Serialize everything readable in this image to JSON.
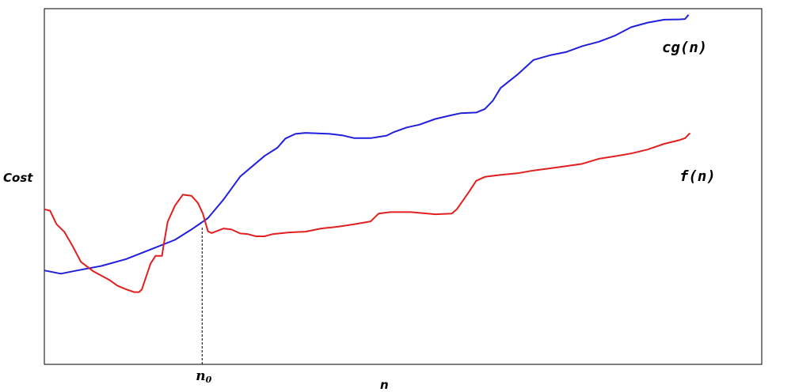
{
  "chart_data": {
    "type": "line",
    "title": "",
    "xlabel": "n",
    "ylabel": "Cost",
    "grid": false,
    "legend": "none",
    "xlim": [
      0,
      100
    ],
    "ylim": [
      0,
      100
    ],
    "marker": {
      "label": "n",
      "subscript": "0",
      "x": 22
    },
    "series": [
      {
        "name": "cg(n)",
        "color": "#1f1fdc",
        "points": [
          [
            0,
            26.4
          ],
          [
            2.3,
            25.5
          ],
          [
            4.6,
            26.4
          ],
          [
            8,
            27.7
          ],
          [
            11.4,
            29.6
          ],
          [
            14.8,
            32.3
          ],
          [
            18.2,
            35
          ],
          [
            20.5,
            37.9
          ],
          [
            22.8,
            41.1
          ],
          [
            25,
            46.4
          ],
          [
            27.3,
            52.8
          ],
          [
            30.7,
            58.6
          ],
          [
            32.5,
            60.9
          ],
          [
            33.6,
            63.5
          ],
          [
            35,
            64.8
          ],
          [
            36.4,
            65.1
          ],
          [
            39.8,
            64.8
          ],
          [
            41.5,
            64.4
          ],
          [
            43.2,
            63.6
          ],
          [
            45.5,
            63.6
          ],
          [
            47.7,
            64.3
          ],
          [
            48.6,
            65.2
          ],
          [
            50.5,
            66.6
          ],
          [
            52.3,
            67.4
          ],
          [
            54.5,
            69
          ],
          [
            56.8,
            70.1
          ],
          [
            58,
            70.6
          ],
          [
            60.2,
            70.8
          ],
          [
            61.4,
            71.8
          ],
          [
            62.5,
            74.1
          ],
          [
            63.6,
            77.7
          ],
          [
            65.9,
            81.4
          ],
          [
            68.2,
            85.6
          ],
          [
            70.5,
            86.9
          ],
          [
            72.7,
            87.8
          ],
          [
            75,
            89.5
          ],
          [
            77.3,
            90.7
          ],
          [
            79.5,
            92.4
          ],
          [
            81.8,
            94.8
          ],
          [
            84.1,
            96.1
          ],
          [
            86.4,
            96.9
          ],
          [
            88.6,
            97
          ],
          [
            89.3,
            97.1
          ],
          [
            89.8,
            98.3
          ]
        ],
        "label": "cg(n)"
      },
      {
        "name": "f(n)",
        "color": "#e11f1f",
        "points": [
          [
            0,
            43.6
          ],
          [
            0.8,
            43.2
          ],
          [
            1.7,
            39.4
          ],
          [
            2.8,
            37.2
          ],
          [
            3.9,
            33.4
          ],
          [
            5.1,
            28.8
          ],
          [
            6.8,
            26.2
          ],
          [
            9.1,
            23.7
          ],
          [
            10.2,
            22.1
          ],
          [
            11.4,
            21.1
          ],
          [
            12.5,
            20.3
          ],
          [
            13.2,
            20.3
          ],
          [
            13.6,
            21.1
          ],
          [
            14.8,
            28.3
          ],
          [
            15.5,
            30.5
          ],
          [
            16.4,
            30.5
          ],
          [
            16.6,
            33.2
          ],
          [
            17.2,
            40.1
          ],
          [
            18.2,
            44.6
          ],
          [
            19.3,
            47.7
          ],
          [
            20.5,
            47.4
          ],
          [
            21.4,
            45.4
          ],
          [
            22.1,
            42.4
          ],
          [
            22.8,
            37.4
          ],
          [
            23.3,
            36.9
          ],
          [
            25,
            38.2
          ],
          [
            26.1,
            37.9
          ],
          [
            27.3,
            36.8
          ],
          [
            28.4,
            36.6
          ],
          [
            29.5,
            36
          ],
          [
            30.7,
            36
          ],
          [
            31.8,
            36.6
          ],
          [
            34.1,
            37.1
          ],
          [
            36.4,
            37.3
          ],
          [
            38.6,
            38.2
          ],
          [
            40.9,
            38.7
          ],
          [
            43.2,
            39.4
          ],
          [
            45.5,
            40.2
          ],
          [
            46.6,
            42.4
          ],
          [
            48.2,
            42.8
          ],
          [
            51.1,
            42.8
          ],
          [
            54.5,
            42.2
          ],
          [
            56.8,
            42.4
          ],
          [
            57.5,
            43.6
          ],
          [
            59.1,
            48.2
          ],
          [
            60.2,
            51.6
          ],
          [
            61.4,
            52.7
          ],
          [
            63.6,
            53.3
          ],
          [
            65.9,
            53.7
          ],
          [
            68.2,
            54.5
          ],
          [
            70.5,
            55.1
          ],
          [
            72.7,
            55.7
          ],
          [
            75,
            56.4
          ],
          [
            77.3,
            57.8
          ],
          [
            79.5,
            58.5
          ],
          [
            81.8,
            59.3
          ],
          [
            84.1,
            60.4
          ],
          [
            86.4,
            62
          ],
          [
            88.6,
            63.1
          ],
          [
            89.3,
            63.6
          ],
          [
            90,
            65
          ]
        ],
        "label": "f(n)"
      }
    ]
  }
}
